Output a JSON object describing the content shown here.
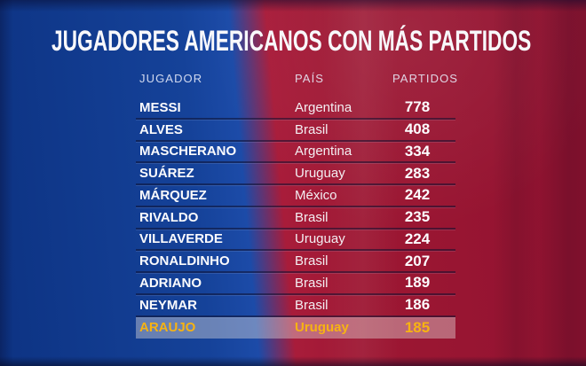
{
  "title": "JUGADORES AMERICANOS CON MÁS PARTIDOS",
  "table": {
    "columns": [
      "JUGADOR",
      "PAÍS",
      "PARTIDOS"
    ],
    "rows": [
      {
        "player": "MESSI",
        "country": "Argentina",
        "matches": "778",
        "highlight": false
      },
      {
        "player": "ALVES",
        "country": "Brasil",
        "matches": "408",
        "highlight": false
      },
      {
        "player": "MASCHERANO",
        "country": "Argentina",
        "matches": "334",
        "highlight": false
      },
      {
        "player": "SUÁREZ",
        "country": "Uruguay",
        "matches": "283",
        "highlight": false
      },
      {
        "player": "MÁRQUEZ",
        "country": "México",
        "matches": "242",
        "highlight": false
      },
      {
        "player": "RIVALDO",
        "country": "Brasil",
        "matches": "235",
        "highlight": false
      },
      {
        "player": "VILLAVERDE",
        "country": "Uruguay",
        "matches": "224",
        "highlight": false
      },
      {
        "player": "RONALDINHO",
        "country": "Brasil",
        "matches": "207",
        "highlight": false
      },
      {
        "player": "ADRIANO",
        "country": "Brasil",
        "matches": "189",
        "highlight": false
      },
      {
        "player": "NEYMAR",
        "country": "Brasil",
        "matches": "186",
        "highlight": false
      },
      {
        "player": "ARAUJO",
        "country": "Uruguay",
        "matches": "185",
        "highlight": true
      }
    ]
  },
  "colors": {
    "background_blue": "#15429c",
    "background_red": "#9c1733",
    "text": "#fafafc",
    "highlight_text": "#f7b312",
    "highlight_band": "rgba(233,227,224,0.40)"
  },
  "chart_data": {
    "type": "table",
    "title": "JUGADORES AMERICANOS CON MÁS PARTIDOS",
    "columns": [
      "JUGADOR",
      "PAÍS",
      "PARTIDOS"
    ],
    "categories": [
      "MESSI",
      "ALVES",
      "MASCHERANO",
      "SUÁREZ",
      "MÁRQUEZ",
      "RIVALDO",
      "VILLAVERDE",
      "RONALDINHO",
      "ADRIANO",
      "NEYMAR",
      "ARAUJO"
    ],
    "series": [
      {
        "name": "PAÍS",
        "values": [
          "Argentina",
          "Brasil",
          "Argentina",
          "Uruguay",
          "México",
          "Brasil",
          "Uruguay",
          "Brasil",
          "Brasil",
          "Brasil",
          "Uruguay"
        ]
      },
      {
        "name": "PARTIDOS",
        "values": [
          778,
          408,
          334,
          283,
          242,
          235,
          224,
          207,
          189,
          186,
          185
        ]
      }
    ],
    "highlighted_row": "ARAUJO"
  }
}
